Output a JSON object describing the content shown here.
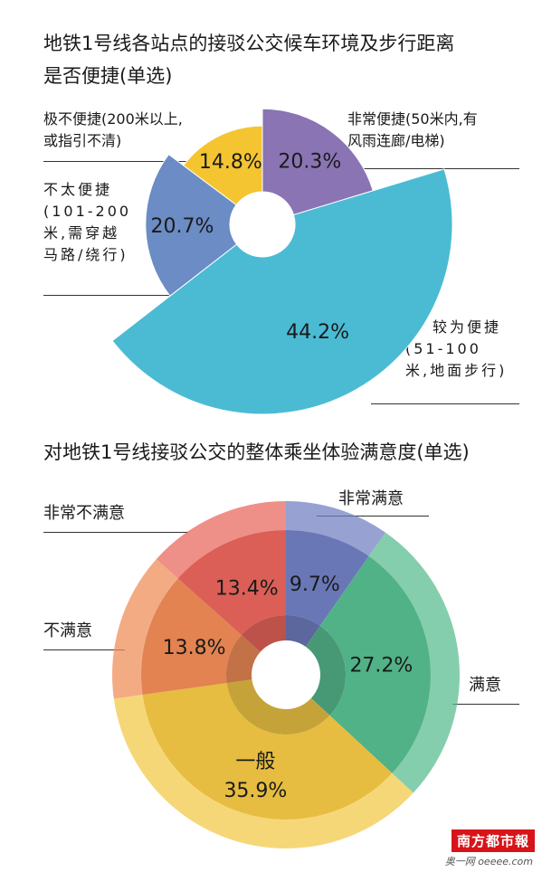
{
  "chart_data": [
    {
      "type": "pie",
      "title": "地铁1号线各站点的接驳公交候车环境及步行距离是否便捷(单选)",
      "title_line1": "地铁1号线各站点的接驳公交候车环境及步行距离",
      "title_line2": "是否便捷(单选)",
      "slices": [
        {
          "name": "非常便捷(50米内,有风雨连廊/电梯)",
          "label_lines": [
            "非常便捷(50米内,有",
            "风雨连廊/电梯)"
          ],
          "value": 20.3,
          "value_label": "20.3%",
          "color": "#8a74b4"
        },
        {
          "name": "较为便捷(51-100米,地面步行)",
          "label_lines": [
            "较为便捷",
            "(51-100",
            "米,地面步行)"
          ],
          "value": 44.2,
          "value_label": "44.2%",
          "color": "#4bbbd4"
        },
        {
          "name": "不太便捷(101-200米,需穿越马路/绕行)",
          "label_lines": [
            "不太便捷",
            "(101-200",
            "米,需穿越",
            "马路/绕行)"
          ],
          "value": 20.7,
          "value_label": "20.7%",
          "color": "#6b8cc4"
        },
        {
          "name": "极不便捷(200米以上,或指引不清)",
          "label_lines": [
            "极不便捷(200米以上,",
            "或指引不清)"
          ],
          "value": 14.8,
          "value_label": "14.8%",
          "color": "#f4c531"
        }
      ]
    },
    {
      "type": "pie",
      "title": "对地铁1号线接驳公交的整体乘坐体验满意度(单选)",
      "slices": [
        {
          "name": "非常满意",
          "value": 9.7,
          "value_label": "9.7%",
          "color": "#6f7dc0"
        },
        {
          "name": "满意",
          "value": 27.2,
          "value_label": "27.2%",
          "color": "#55bb8e"
        },
        {
          "name": "一般",
          "value": 35.9,
          "value_label": "35.9%",
          "color": "#f2c744"
        },
        {
          "name": "不满意",
          "value": 13.8,
          "value_label": "13.8%",
          "color": "#ee8a55"
        },
        {
          "name": "非常不满意",
          "value": 13.4,
          "value_label": "13.4%",
          "color": "#e7645a"
        }
      ]
    }
  ],
  "branding": {
    "logo": "南方都市報",
    "site": "奥一网 oeeee.com"
  }
}
